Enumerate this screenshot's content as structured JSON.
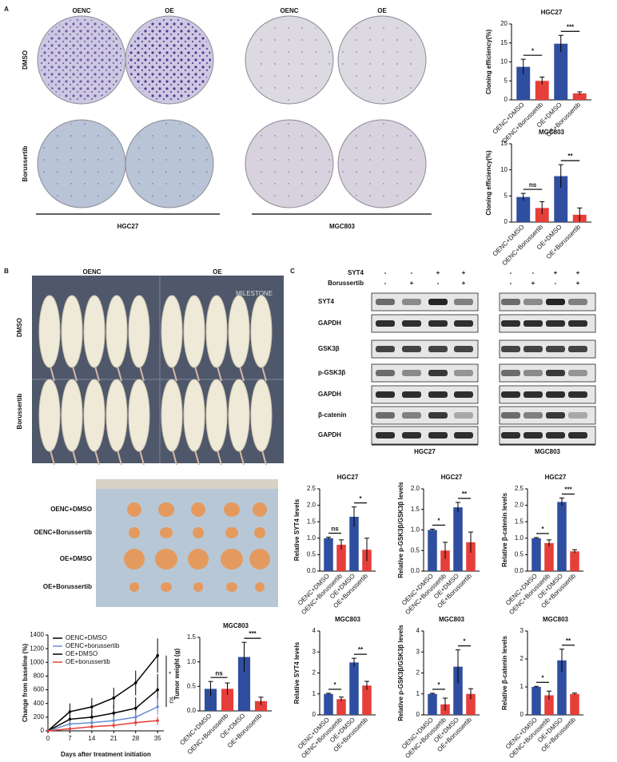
{
  "panel_labels": [
    "A",
    "B",
    "C"
  ],
  "colony": {
    "columns": [
      "OENC",
      "OE",
      "OENC",
      "OE"
    ],
    "rows": [
      "DMSO",
      "Borussertib"
    ],
    "cell_lines": [
      "HGC27",
      "MGC803"
    ]
  },
  "mice": {
    "columns": [
      "OENC",
      "OE"
    ],
    "rows": [
      "DMSO",
      "Borussertib"
    ],
    "brand": "MILESTONE"
  },
  "tumors": {
    "rows": [
      "OENC+DMSO",
      "OENC+Borussertib",
      "OE+DMSO",
      "OE+Borussertib"
    ]
  },
  "western": {
    "treatments": [
      "SYT4",
      "Borussertib"
    ],
    "rows": [
      "SYT4",
      "GAPDH",
      "GSK3β",
      "p-GSK3β",
      "GAPDH",
      "β-catenin",
      "GAPDH"
    ],
    "blocks": [
      {
        "cell_line": "HGC27",
        "signs": [
          [
            "-",
            "-",
            "+",
            "+"
          ],
          [
            "-",
            "+",
            "-",
            "+"
          ]
        ]
      },
      {
        "cell_line": "MGC803",
        "signs": [
          [
            "-",
            "-",
            "+",
            "+"
          ],
          [
            "-",
            "+",
            "-",
            "+"
          ]
        ]
      }
    ]
  },
  "chart_data": [
    {
      "type": "bar",
      "title": "HGC27",
      "ylabel": "Cloning efficiency(%)",
      "categories": [
        "OENC+DMSO",
        "OENC+Borussertib",
        "OE+DMSO",
        "OE+Borussertib"
      ],
      "values": [
        8.7,
        5.0,
        14.8,
        1.7
      ],
      "errors": [
        2.0,
        1.0,
        2.2,
        0.4
      ],
      "colors": [
        "#2f4ea0",
        "#e63f3a",
        "#2f4ea0",
        "#e63f3a"
      ],
      "ylim": [
        0,
        20
      ],
      "yticks": [
        0,
        5,
        10,
        15,
        20
      ],
      "annotations": [
        "*",
        "***"
      ]
    },
    {
      "type": "bar",
      "title": "MGC803",
      "ylabel": "Cloning efficiency(%)",
      "categories": [
        "OENC+DMSO",
        "OENC+Borussertib",
        "OE+DMSO",
        "OE+Borussertib"
      ],
      "values": [
        4.8,
        2.7,
        8.8,
        1.4
      ],
      "errors": [
        0.7,
        1.2,
        2.2,
        1.3
      ],
      "colors": [
        "#2f4ea0",
        "#e63f3a",
        "#2f4ea0",
        "#e63f3a"
      ],
      "ylim": [
        0,
        15
      ],
      "yticks": [
        0,
        5,
        10,
        15
      ],
      "annotations": [
        "ns",
        "**"
      ]
    },
    {
      "type": "line",
      "ylabel": "Change from baseline (%)",
      "xlabel": "Days after treatment initiation",
      "x": [
        0,
        7,
        14,
        21,
        28,
        35
      ],
      "xlim": [
        0,
        37
      ],
      "xticks": [
        0,
        7,
        14,
        21,
        28,
        35
      ],
      "ylim": [
        0,
        1400
      ],
      "yticks": [
        0,
        200,
        400,
        600,
        800,
        1000,
        1200,
        1400
      ],
      "legend": "upper left",
      "series": [
        {
          "name": "OENC+DMSO",
          "color": "#000000",
          "values": [
            0,
            170,
            200,
            260,
            330,
            600
          ],
          "errors": [
            0,
            90,
            100,
            120,
            160,
            230
          ]
        },
        {
          "name": "OENC+borussertib",
          "color": "#6a8fd0",
          "values": [
            0,
            100,
            120,
            150,
            200,
            350
          ],
          "errors": [
            0,
            50,
            60,
            70,
            90,
            120
          ]
        },
        {
          "name": "OE+DMSO",
          "color": "#000000",
          "values": [
            0,
            280,
            350,
            480,
            700,
            1100
          ],
          "errors": [
            0,
            120,
            130,
            150,
            180,
            250
          ]
        },
        {
          "name": "OE+borussertib",
          "color": "#e63f3a",
          "values": [
            0,
            30,
            60,
            80,
            120,
            150
          ],
          "errors": [
            0,
            20,
            30,
            40,
            50,
            60
          ]
        }
      ],
      "annotations": [
        "*",
        "ns"
      ]
    },
    {
      "type": "bar",
      "title": "MGC803",
      "ylabel": "Tumor weight (g)",
      "categories": [
        "OENC+DMSO",
        "OENC+Borussertib",
        "OE+DMSO",
        "OE+Borussertib"
      ],
      "values": [
        0.45,
        0.45,
        1.1,
        0.2
      ],
      "errors": [
        0.15,
        0.12,
        0.3,
        0.08
      ],
      "colors": [
        "#2f4ea0",
        "#e63f3a",
        "#2f4ea0",
        "#e63f3a"
      ],
      "ylim": [
        0,
        1.5
      ],
      "yticks": [
        {
          "value": 0,
          "label": "0.0"
        },
        0.5,
        {
          "value": 1,
          "label": "1.0"
        },
        1.5
      ],
      "annotations": [
        "ns",
        "***"
      ]
    },
    {
      "type": "bar",
      "title": "HGC27",
      "ylabel": "Relative SYT4 levels",
      "categories": [
        "OENC+DMSO",
        "OENC+Borussertib",
        "OE+DMSO",
        "OE+Borussertib"
      ],
      "values": [
        1.0,
        0.8,
        1.65,
        0.65
      ],
      "errors": [
        0.03,
        0.15,
        0.3,
        0.35
      ],
      "colors": [
        "#2f4ea0",
        "#e63f3a",
        "#2f4ea0",
        "#e63f3a"
      ],
      "ylim": [
        0,
        2.5
      ],
      "yticks": [
        {
          "value": 0,
          "label": "0.0"
        },
        0.5,
        {
          "value": 1,
          "label": "1.0"
        },
        1.5,
        {
          "value": 2,
          "label": "2.0"
        },
        2.5
      ],
      "annotations": [
        "ns",
        "*"
      ]
    },
    {
      "type": "bar",
      "title": "HGC27",
      "ylabel": "Relative p-GSK3β/GSK3β levels",
      "categories": [
        "OENC+DMSO",
        "OENC+Borussertib",
        "OE+DMSO",
        "OE+Borussertib"
      ],
      "values": [
        1.0,
        0.5,
        1.55,
        0.7
      ],
      "errors": [
        0.02,
        0.2,
        0.12,
        0.25
      ],
      "colors": [
        "#2f4ea0",
        "#e63f3a",
        "#2f4ea0",
        "#e63f3a"
      ],
      "ylim": [
        0,
        2
      ],
      "yticks": [
        {
          "value": 0,
          "label": "0.0"
        },
        0.5,
        {
          "value": 1,
          "label": "1.0"
        },
        1.5,
        {
          "value": 2,
          "label": "2.0"
        }
      ],
      "annotations": [
        "*",
        "**"
      ]
    },
    {
      "type": "bar",
      "title": "HGC27",
      "ylabel": "Relative β-catenin levels",
      "categories": [
        "OENC+DMSO",
        "OENC+Borussertib",
        "OE+DMSO",
        "OE+Borussertib"
      ],
      "values": [
        1.0,
        0.85,
        2.1,
        0.6
      ],
      "errors": [
        0.02,
        0.1,
        0.12,
        0.05
      ],
      "colors": [
        "#2f4ea0",
        "#e63f3a",
        "#2f4ea0",
        "#e63f3a"
      ],
      "ylim": [
        0,
        2.5
      ],
      "yticks": [
        {
          "value": 0,
          "label": "0.0"
        },
        0.5,
        {
          "value": 1,
          "label": "1.0"
        },
        1.5,
        {
          "value": 2,
          "label": "2.0"
        },
        2.5
      ],
      "annotations": [
        "*",
        "***"
      ]
    },
    {
      "type": "bar",
      "title": "MGC803",
      "ylabel": "Relative SYT4 levels",
      "categories": [
        "OENC+DMSO",
        "OENC+Borussertib",
        "OE+DMSO",
        "OE+Borussertib"
      ],
      "values": [
        1.0,
        0.75,
        2.5,
        1.4
      ],
      "errors": [
        0.03,
        0.1,
        0.2,
        0.2
      ],
      "colors": [
        "#2f4ea0",
        "#e63f3a",
        "#2f4ea0",
        "#e63f3a"
      ],
      "ylim": [
        0,
        4
      ],
      "yticks": [
        0,
        1,
        2,
        3,
        4
      ],
      "annotations": [
        "*",
        "**"
      ]
    },
    {
      "type": "bar",
      "title": "MGC803",
      "ylabel": "Relative p-GSK3β/GSK3β levels",
      "categories": [
        "OENC+DMSO",
        "OENC+Borussertib",
        "OE+DMSO",
        "OE+Borussertib"
      ],
      "values": [
        1.0,
        0.5,
        2.3,
        1.0
      ],
      "errors": [
        0.03,
        0.3,
        0.8,
        0.25
      ],
      "colors": [
        "#2f4ea0",
        "#e63f3a",
        "#2f4ea0",
        "#e63f3a"
      ],
      "ylim": [
        0,
        4
      ],
      "yticks": [
        0,
        1,
        2,
        3,
        4
      ],
      "annotations": [
        "*",
        "*"
      ]
    },
    {
      "type": "bar",
      "title": "MGC803",
      "ylabel": "Relative β-catenin levels",
      "categories": [
        "OENC+DMSO",
        "OENC+Borussertib",
        "OE+DMSO",
        "OE+Borussertib"
      ],
      "values": [
        1.0,
        0.7,
        1.95,
        0.75
      ],
      "errors": [
        0.02,
        0.15,
        0.4,
        0.03
      ],
      "colors": [
        "#2f4ea0",
        "#e63f3a",
        "#2f4ea0",
        "#e63f3a"
      ],
      "ylim": [
        0,
        3
      ],
      "yticks": [
        0,
        1,
        2,
        3
      ],
      "annotations": [
        "*",
        "**"
      ]
    }
  ]
}
